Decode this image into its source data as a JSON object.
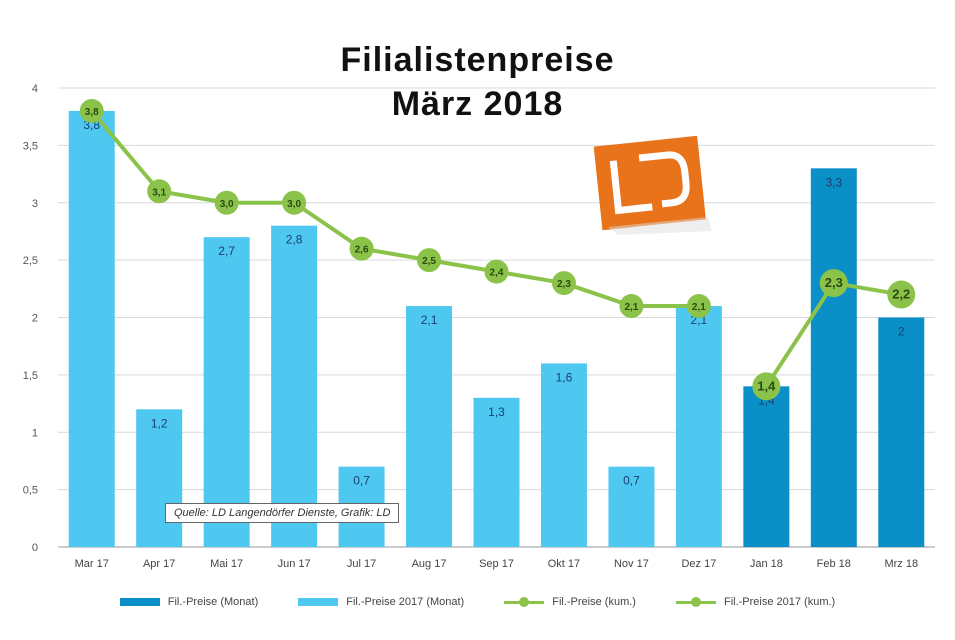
{
  "chart_data": {
    "type": "bar",
    "title": "Filialistenpreise",
    "subtitle": "März 2018",
    "source": "Quelle: LD Langendörfer Dienste, Grafik: LD",
    "categories": [
      "Mar 17",
      "Apr 17",
      "Mai 17",
      "Jun 17",
      "Jul 17",
      "Aug 17",
      "Sep 17",
      "Okt 17",
      "Nov 17",
      "Dez 17",
      "Jan 18",
      "Feb 18",
      "Mrz 18"
    ],
    "ylim": [
      0,
      4
    ],
    "yticks": [
      "0",
      "0,5",
      "1",
      "1,5",
      "2",
      "2,5",
      "3",
      "3,5",
      "4"
    ],
    "ytick_values": [
      0,
      0.5,
      1,
      1.5,
      2,
      2.5,
      3,
      3.5,
      4
    ],
    "grid": true,
    "legend_position": "bottom",
    "bar_labels_2017": [
      "3,8",
      "1,2",
      "2,7",
      "2,8",
      "0,7",
      "2,1",
      "1,3",
      "1,6",
      "0,7",
      "2,1"
    ],
    "bar_labels_2018": [
      "1,4",
      "3,3",
      "2"
    ],
    "line_labels_2017": [
      "3,8",
      "3,1",
      "3,0",
      "3,0",
      "2,6",
      "2,5",
      "2,4",
      "2,3",
      "2,1",
      "2,1"
    ],
    "line_labels_2018": [
      "1,4",
      "2,3",
      "2,2"
    ],
    "series": [
      {
        "name": "Fil.-Preise (Monat)",
        "kind": "bar",
        "color": "#0b8fc7",
        "values": [
          null,
          null,
          null,
          null,
          null,
          null,
          null,
          null,
          null,
          null,
          1.4,
          3.3,
          2.0
        ]
      },
      {
        "name": "Fil.-Preise 2017 (Monat)",
        "kind": "bar",
        "color": "#4ec8f0",
        "values": [
          3.8,
          1.2,
          2.7,
          2.8,
          0.7,
          2.1,
          1.3,
          1.6,
          0.7,
          2.1,
          null,
          null,
          null
        ]
      },
      {
        "name": "Fil.-Preise (kum.)",
        "kind": "line",
        "color": "#8bc34a",
        "values": [
          null,
          null,
          null,
          null,
          null,
          null,
          null,
          null,
          null,
          null,
          1.4,
          2.3,
          2.2
        ]
      },
      {
        "name": "Fil.-Preise 2017 (kum.)",
        "kind": "line",
        "color": "#8bc34a",
        "values": [
          3.8,
          3.1,
          3.0,
          3.0,
          2.6,
          2.5,
          2.4,
          2.3,
          2.1,
          2.1,
          null,
          null,
          null
        ]
      }
    ]
  },
  "logo": {
    "letters": "LD",
    "color": "#e8731a"
  }
}
